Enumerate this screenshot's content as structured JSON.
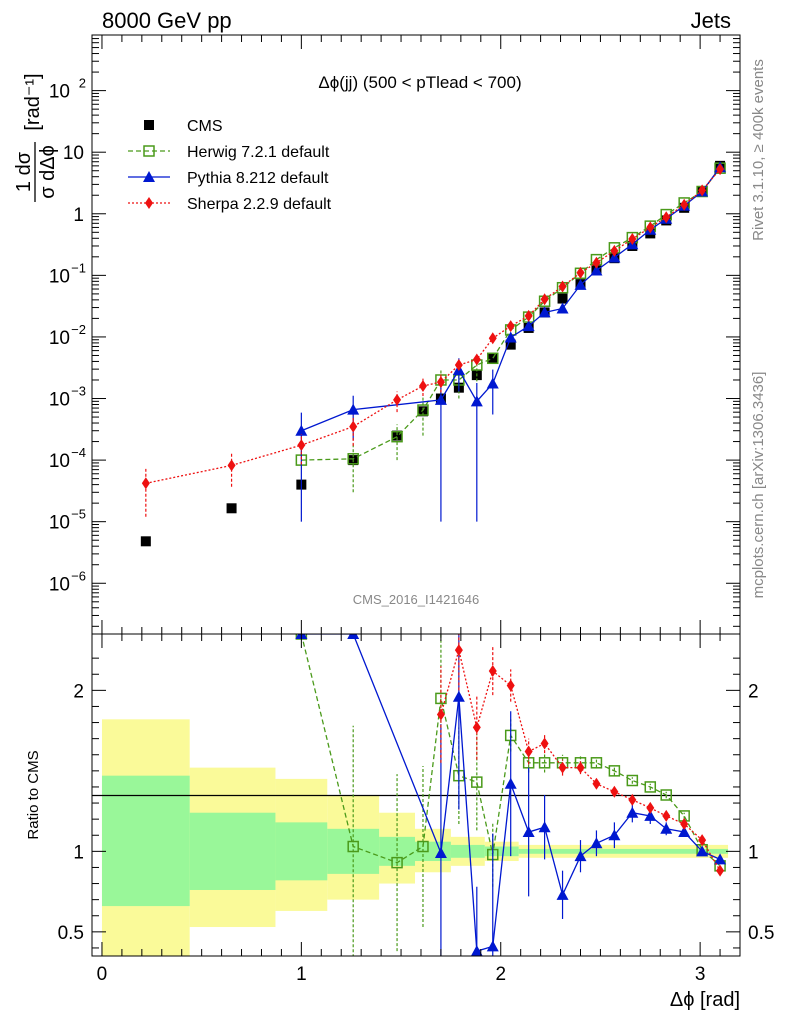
{
  "header": {
    "left": "8000 GeV pp",
    "right": "Jets"
  },
  "side_text": {
    "top": "Rivet 3.1.10, ≥ 400k events",
    "bottom": "mcplots.cern.ch [arXiv:1306.3436]"
  },
  "watermark": "CMS_2016_I1421646",
  "colors": {
    "cms": "#000000",
    "herwig": "#4a9a1a",
    "pythia": "#0018d0",
    "sherpa": "#ee1111",
    "band_inner": "#99f799",
    "band_outer": "#fafa99"
  },
  "chart_data": [
    {
      "type": "scatter",
      "title": "Δϕ(jj) (500 < pTlead <  700)",
      "ylabel_top": "1 dσ",
      "ylabel_bottom": "σ dΔϕ",
      "ylabel_unit": "[rad⁻¹]",
      "yscale": "log",
      "ylim": [
        1.5e-07,
        800
      ],
      "xlim": [
        -0.05,
        3.2
      ],
      "y_ticks": [
        {
          "v": 1e-06,
          "base": "10",
          "exp": "−6"
        },
        {
          "v": 1e-05,
          "base": "10",
          "exp": "−5"
        },
        {
          "v": 0.0001,
          "base": "10",
          "exp": "−4"
        },
        {
          "v": 0.001,
          "base": "10",
          "exp": "−3"
        },
        {
          "v": 0.01,
          "base": "10",
          "exp": "−2"
        },
        {
          "v": 0.1,
          "base": "10",
          "exp": "−1"
        },
        {
          "v": 1,
          "base": "1",
          "exp": ""
        },
        {
          "v": 10,
          "base": "10",
          "exp": ""
        },
        {
          "v": 100,
          "base": "10",
          "exp": "2"
        }
      ],
      "legend": [
        {
          "key": "cms",
          "label": "CMS"
        },
        {
          "key": "herwig",
          "label": "Herwig 7.2.1 default"
        },
        {
          "key": "pythia",
          "label": "Pythia 8.212 default"
        },
        {
          "key": "sherpa",
          "label": "Sherpa 2.2.9 default"
        }
      ],
      "series": [
        {
          "name": "CMS",
          "key": "cms",
          "x": [
            0.22,
            0.65,
            1.0,
            1.26,
            1.48,
            1.61,
            1.7,
            1.79,
            1.88,
            1.96,
            2.05,
            2.14,
            2.22,
            2.31,
            2.4,
            2.48,
            2.57,
            2.66,
            2.75,
            2.83,
            2.92,
            3.01,
            3.1
          ],
          "y": [
            4.8e-06,
            1.65e-05,
            4e-05,
            0.0001,
            0.00025,
            0.00062,
            0.001,
            0.0015,
            0.0024,
            0.0044,
            0.0075,
            0.014,
            0.025,
            0.042,
            0.072,
            0.12,
            0.19,
            0.3,
            0.48,
            0.78,
            1.25,
            2.3,
            6.0
          ]
        },
        {
          "name": "Herwig 7.2.1 default",
          "key": "herwig",
          "x": [
            1.0,
            1.26,
            1.48,
            1.61,
            1.7,
            1.79,
            1.88,
            1.96,
            2.05,
            2.14,
            2.22,
            2.31,
            2.4,
            2.48,
            2.57,
            2.66,
            2.75,
            2.83,
            2.92,
            3.01,
            3.1
          ],
          "y": [
            0.0001,
            0.000105,
            0.00024,
            0.00065,
            0.002,
            0.002,
            0.0035,
            0.0045,
            0.013,
            0.021,
            0.038,
            0.063,
            0.108,
            0.18,
            0.28,
            0.41,
            0.63,
            0.97,
            1.5,
            2.3,
            5.5
          ],
          "err": [
            0,
            7.5e-05,
            0.00014,
            0.0004,
            0.001,
            0.001,
            0.0016,
            0,
            0,
            0,
            0,
            0,
            0,
            0,
            0,
            0,
            0,
            0,
            0,
            0,
            0
          ]
        },
        {
          "name": "Pythia 8.212 default",
          "key": "pythia",
          "x": [
            1.0,
            1.26,
            1.7,
            1.79,
            1.88,
            1.96,
            2.05,
            2.14,
            2.22,
            2.31,
            2.4,
            2.48,
            2.57,
            2.66,
            2.75,
            2.83,
            2.92,
            3.01,
            3.1
          ],
          "y": [
            0.0003,
            0.00066,
            0.00095,
            0.0029,
            0.0009,
            0.00175,
            0.0098,
            0.015,
            0.025,
            0.029,
            0.07,
            0.12,
            0.195,
            0.32,
            0.55,
            0.83,
            1.35,
            2.3,
            5.7
          ],
          "err": [
            0.00029,
            0.00045,
            0.00094,
            0.0016,
            0.00089,
            0.0012,
            0,
            0,
            0,
            0,
            0,
            0,
            0,
            0,
            0,
            0,
            0,
            0,
            0
          ]
        },
        {
          "name": "Sherpa 2.2.9 default",
          "key": "sherpa",
          "x": [
            0.22,
            0.65,
            1.0,
            1.26,
            1.48,
            1.61,
            1.7,
            1.79,
            1.88,
            1.96,
            2.05,
            2.14,
            2.22,
            2.31,
            2.4,
            2.48,
            2.57,
            2.66,
            2.75,
            2.83,
            2.92,
            3.01,
            3.1
          ],
          "y": [
            4.2e-05,
            8.2e-05,
            0.000175,
            0.00035,
            0.00095,
            0.0016,
            0.00185,
            0.0035,
            0.0043,
            0.0095,
            0.015,
            0.022,
            0.041,
            0.066,
            0.11,
            0.16,
            0.25,
            0.39,
            0.6,
            0.88,
            1.4,
            2.4,
            5.3
          ],
          "err": [
            3e-05,
            4.5e-05,
            9e-05,
            0.00018,
            0.00035,
            0.0005,
            0.0006,
            0,
            0,
            0,
            0,
            0,
            0,
            0,
            0,
            0,
            0,
            0,
            0,
            0,
            0,
            0,
            0
          ]
        }
      ]
    },
    {
      "type": "scatter",
      "title": "Ratio to CMS",
      "ylabel": "Ratio to CMS",
      "xlabel": "Δϕ [rad]",
      "ylim": [
        0.35,
        2.35
      ],
      "xlim": [
        -0.05,
        3.2
      ],
      "x_ticks": [
        0,
        1,
        2,
        3
      ],
      "y_ticks": [
        0.5,
        1,
        2
      ],
      "y_tick_labels": [
        "0.5",
        "1",
        "2"
      ],
      "bands": [
        {
          "x0": 0.0,
          "x1": 0.44,
          "outer": [
            0.35,
            1.82
          ],
          "inner": [
            0.66,
            1.47
          ]
        },
        {
          "x0": 0.44,
          "x1": 0.87,
          "outer": [
            0.53,
            1.52
          ],
          "inner": [
            0.76,
            1.24
          ]
        },
        {
          "x0": 0.87,
          "x1": 1.13,
          "outer": [
            0.63,
            1.45
          ],
          "inner": [
            0.82,
            1.18
          ]
        },
        {
          "x0": 1.13,
          "x1": 1.39,
          "outer": [
            0.7,
            1.35
          ],
          "inner": [
            0.86,
            1.14
          ]
        },
        {
          "x0": 1.39,
          "x1": 1.57,
          "outer": [
            0.8,
            1.24
          ],
          "inner": [
            0.91,
            1.09
          ]
        },
        {
          "x0": 1.57,
          "x1": 1.75,
          "outer": [
            0.87,
            1.14
          ],
          "inner": [
            0.94,
            1.06
          ]
        },
        {
          "x0": 1.75,
          "x1": 1.92,
          "outer": [
            0.91,
            1.09
          ],
          "inner": [
            0.96,
            1.04
          ]
        },
        {
          "x0": 1.92,
          "x1": 2.09,
          "outer": [
            0.94,
            1.06
          ],
          "inner": [
            0.97,
            1.03
          ]
        },
        {
          "x0": 2.09,
          "x1": 3.14,
          "outer": [
            0.96,
            1.04
          ],
          "inner": [
            0.985,
            1.015
          ]
        }
      ],
      "series": [
        {
          "name": "Herwig 7.2.1 default",
          "key": "herwig",
          "x": [
            1.0,
            1.26,
            1.48,
            1.61,
            1.7,
            1.79,
            1.88,
            1.96,
            2.05,
            2.14,
            2.22,
            2.31,
            2.4,
            2.48,
            2.57,
            2.66,
            2.75,
            2.83,
            2.92,
            3.01,
            3.1
          ],
          "y": [
            2.35,
            1.03,
            0.93,
            1.03,
            1.95,
            1.47,
            1.43,
            0.98,
            1.72,
            1.55,
            1.55,
            1.55,
            1.55,
            1.55,
            1.5,
            1.44,
            1.4,
            1.35,
            1.22,
            1.01,
            0.91
          ],
          "err": [
            0,
            0.75,
            0.55,
            0.5,
            0.4,
            0.3,
            0.3,
            0.2,
            0.1,
            0.06,
            0.06,
            0.05,
            0.04,
            0.03,
            0.03,
            0.02,
            0.02,
            0.02,
            0.02,
            0.02,
            0.02
          ]
        },
        {
          "name": "Pythia 8.212 default",
          "key": "pythia",
          "x": [
            1.0,
            1.26,
            1.7,
            1.79,
            1.88,
            1.96,
            2.05,
            2.14,
            2.22,
            2.31,
            2.4,
            2.48,
            2.57,
            2.66,
            2.75,
            2.83,
            2.92,
            3.01,
            3.1
          ],
          "y": [
            2.35,
            2.35,
            0.99,
            1.96,
            0.38,
            0.41,
            1.42,
            1.12,
            1.15,
            0.73,
            0.97,
            1.05,
            1.1,
            1.24,
            1.22,
            1.14,
            1.12,
            1.0,
            0.95
          ],
          "err": [
            0,
            0,
            0.8,
            0.7,
            0.4,
            0.7,
            0.45,
            0.4,
            0.2,
            0.15,
            0.1,
            0.08,
            0.08,
            0.06,
            0.05,
            0.04,
            0.03,
            0.02,
            0.02
          ]
        },
        {
          "name": "Sherpa 2.2.9 default",
          "key": "sherpa",
          "x": [
            1.7,
            1.79,
            1.88,
            1.96,
            2.05,
            2.14,
            2.22,
            2.31,
            2.4,
            2.48,
            2.57,
            2.66,
            2.75,
            2.83,
            2.92,
            3.01,
            3.1
          ],
          "y": [
            1.85,
            2.25,
            1.77,
            2.12,
            2.03,
            1.62,
            1.67,
            1.52,
            1.52,
            1.42,
            1.37,
            1.32,
            1.27,
            1.22,
            1.17,
            1.07,
            0.88
          ],
          "err": [
            0.3,
            0.25,
            0.2,
            0.15,
            0.1,
            0.08,
            0.06,
            0.05,
            0.04,
            0.03,
            0.03,
            0.02,
            0.02,
            0.02,
            0.02,
            0.02,
            0.02
          ]
        }
      ]
    }
  ]
}
